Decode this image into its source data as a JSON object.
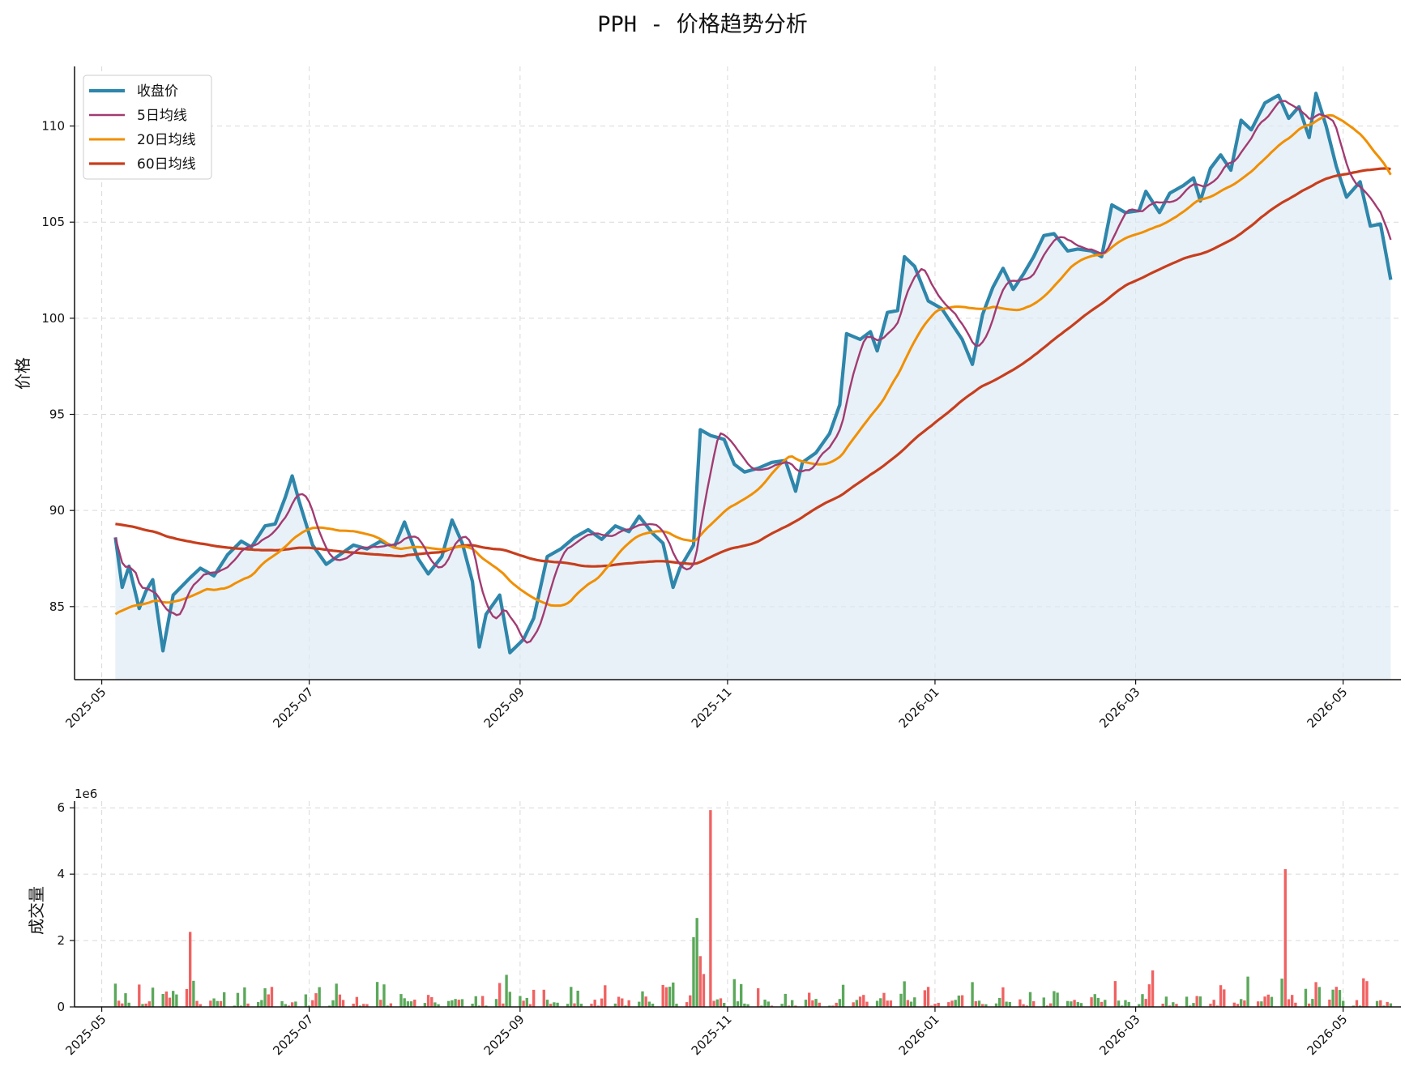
{
  "chart_data": [
    {
      "type": "line",
      "title": "PPH - 价格趋势分析",
      "ylabel": "价格",
      "xlabel": "",
      "ylim": [
        81.2,
        113.1
      ],
      "xlim": [
        "2025-04-23",
        "2026-05-18"
      ],
      "grid": true,
      "legend_position": "top-left",
      "yticks": [
        85,
        90,
        95,
        100,
        105,
        110
      ],
      "xticks": [
        "2025-05",
        "2025-07",
        "2025-09",
        "2025-11",
        "2026-01",
        "2026-03",
        "2026-05"
      ],
      "series_anchor_points": "weekly (date, value) readings; the script smooths the curve between them",
      "series": [
        {
          "name": "收盘价",
          "color": "#2e86ab",
          "area_fill": true,
          "points": [
            [
              "2025-05-05",
              88.6
            ],
            [
              "2025-05-07",
              86.0
            ],
            [
              "2025-05-09",
              87.1
            ],
            [
              "2025-05-12",
              84.9
            ],
            [
              "2025-05-14",
              85.8
            ],
            [
              "2025-05-16",
              86.4
            ],
            [
              "2025-05-19",
              82.7
            ],
            [
              "2025-05-22",
              85.6
            ],
            [
              "2025-05-27",
              86.5
            ],
            [
              "2025-05-30",
              87.0
            ],
            [
              "2025-06-03",
              86.6
            ],
            [
              "2025-06-07",
              87.7
            ],
            [
              "2025-06-11",
              88.4
            ],
            [
              "2025-06-14",
              88.1
            ],
            [
              "2025-06-18",
              89.2
            ],
            [
              "2025-06-21",
              89.3
            ],
            [
              "2025-06-24",
              90.7
            ],
            [
              "2025-06-26",
              91.8
            ],
            [
              "2025-06-28",
              90.5
            ],
            [
              "2025-07-02",
              88.2
            ],
            [
              "2025-07-06",
              87.2
            ],
            [
              "2025-07-10",
              87.7
            ],
            [
              "2025-07-14",
              88.2
            ],
            [
              "2025-07-18",
              88.0
            ],
            [
              "2025-07-22",
              88.4
            ],
            [
              "2025-07-26",
              88.1
            ],
            [
              "2025-07-29",
              89.4
            ],
            [
              "2025-08-02",
              87.5
            ],
            [
              "2025-08-05",
              86.7
            ],
            [
              "2025-08-09",
              87.6
            ],
            [
              "2025-08-12",
              89.5
            ],
            [
              "2025-08-15",
              88.3
            ],
            [
              "2025-08-18",
              86.3
            ],
            [
              "2025-08-20",
              82.9
            ],
            [
              "2025-08-22",
              84.6
            ],
            [
              "2025-08-26",
              85.6
            ],
            [
              "2025-08-29",
              82.6
            ],
            [
              "2025-09-02",
              83.3
            ],
            [
              "2025-09-05",
              84.4
            ],
            [
              "2025-09-09",
              87.6
            ],
            [
              "2025-09-13",
              88.0
            ],
            [
              "2025-09-17",
              88.6
            ],
            [
              "2025-09-21",
              89.0
            ],
            [
              "2025-09-25",
              88.5
            ],
            [
              "2025-09-29",
              89.2
            ],
            [
              "2025-10-03",
              88.9
            ],
            [
              "2025-10-06",
              89.7
            ],
            [
              "2025-10-10",
              88.8
            ],
            [
              "2025-10-13",
              88.3
            ],
            [
              "2025-10-16",
              86.0
            ],
            [
              "2025-10-18",
              87.0
            ],
            [
              "2025-10-22",
              88.2
            ],
            [
              "2025-10-24",
              94.2
            ],
            [
              "2025-10-27",
              93.9
            ],
            [
              "2025-10-31",
              93.7
            ],
            [
              "2025-11-03",
              92.4
            ],
            [
              "2025-11-06",
              92.0
            ],
            [
              "2025-11-10",
              92.2
            ],
            [
              "2025-11-14",
              92.5
            ],
            [
              "2025-11-18",
              92.6
            ],
            [
              "2025-11-21",
              91.0
            ],
            [
              "2025-11-23",
              92.5
            ],
            [
              "2025-11-27",
              93.0
            ],
            [
              "2025-12-01",
              94.0
            ],
            [
              "2025-12-04",
              95.5
            ],
            [
              "2025-12-06",
              99.2
            ],
            [
              "2025-12-10",
              98.9
            ],
            [
              "2025-12-13",
              99.3
            ],
            [
              "2025-12-15",
              98.3
            ],
            [
              "2025-12-18",
              100.3
            ],
            [
              "2025-12-21",
              100.4
            ],
            [
              "2025-12-23",
              103.2
            ],
            [
              "2025-12-26",
              102.7
            ],
            [
              "2025-12-30",
              100.9
            ],
            [
              "2026-01-03",
              100.5
            ],
            [
              "2026-01-06",
              99.7
            ],
            [
              "2026-01-09",
              98.9
            ],
            [
              "2026-01-12",
              97.6
            ],
            [
              "2026-01-15",
              100.2
            ],
            [
              "2026-01-18",
              101.6
            ],
            [
              "2026-01-21",
              102.6
            ],
            [
              "2026-01-24",
              101.5
            ],
            [
              "2026-01-27",
              102.3
            ],
            [
              "2026-01-30",
              103.2
            ],
            [
              "2026-02-02",
              104.3
            ],
            [
              "2026-02-05",
              104.4
            ],
            [
              "2026-02-09",
              103.5
            ],
            [
              "2026-02-12",
              103.6
            ],
            [
              "2026-02-16",
              103.5
            ],
            [
              "2026-02-19",
              103.2
            ],
            [
              "2026-02-22",
              105.9
            ],
            [
              "2026-02-26",
              105.5
            ],
            [
              "2026-03-02",
              105.6
            ],
            [
              "2026-03-04",
              106.6
            ],
            [
              "2026-03-08",
              105.5
            ],
            [
              "2026-03-11",
              106.5
            ],
            [
              "2026-03-15",
              106.9
            ],
            [
              "2026-03-18",
              107.3
            ],
            [
              "2026-03-20",
              106.1
            ],
            [
              "2026-03-23",
              107.8
            ],
            [
              "2026-03-26",
              108.5
            ],
            [
              "2026-03-29",
              107.7
            ],
            [
              "2026-04-01",
              110.3
            ],
            [
              "2026-04-04",
              109.8
            ],
            [
              "2026-04-08",
              111.2
            ],
            [
              "2026-04-12",
              111.6
            ],
            [
              "2026-04-15",
              110.4
            ],
            [
              "2026-04-18",
              111.0
            ],
            [
              "2026-04-21",
              109.4
            ],
            [
              "2026-04-23",
              111.7
            ],
            [
              "2026-04-26",
              110.0
            ],
            [
              "2026-04-29",
              107.9
            ],
            [
              "2026-05-02",
              106.3
            ],
            [
              "2026-05-06",
              107.1
            ],
            [
              "2026-05-09",
              104.8
            ],
            [
              "2026-05-12",
              104.9
            ],
            [
              "2026-05-15",
              102.0
            ]
          ]
        },
        {
          "name": "5日均线",
          "color": "#a23b72",
          "points": []
        },
        {
          "name": "20日均线",
          "color": "#f18f01",
          "points": []
        },
        {
          "name": "60日均线",
          "color": "#c73e1d",
          "points": []
        }
      ]
    },
    {
      "type": "bar",
      "title": "",
      "ylabel": "成交量",
      "xlabel": "",
      "ylim": [
        0,
        6200000
      ],
      "y_offset_text": "1e6",
      "yticks": [
        0,
        2,
        4,
        6
      ],
      "xticks": [
        "2025-05",
        "2025-07",
        "2025-09",
        "2025-11",
        "2026-01",
        "2026-03",
        "2026-05"
      ],
      "grid": true,
      "up_color": "#5ba85b",
      "down_color": "#f06262",
      "bars": []
    }
  ]
}
